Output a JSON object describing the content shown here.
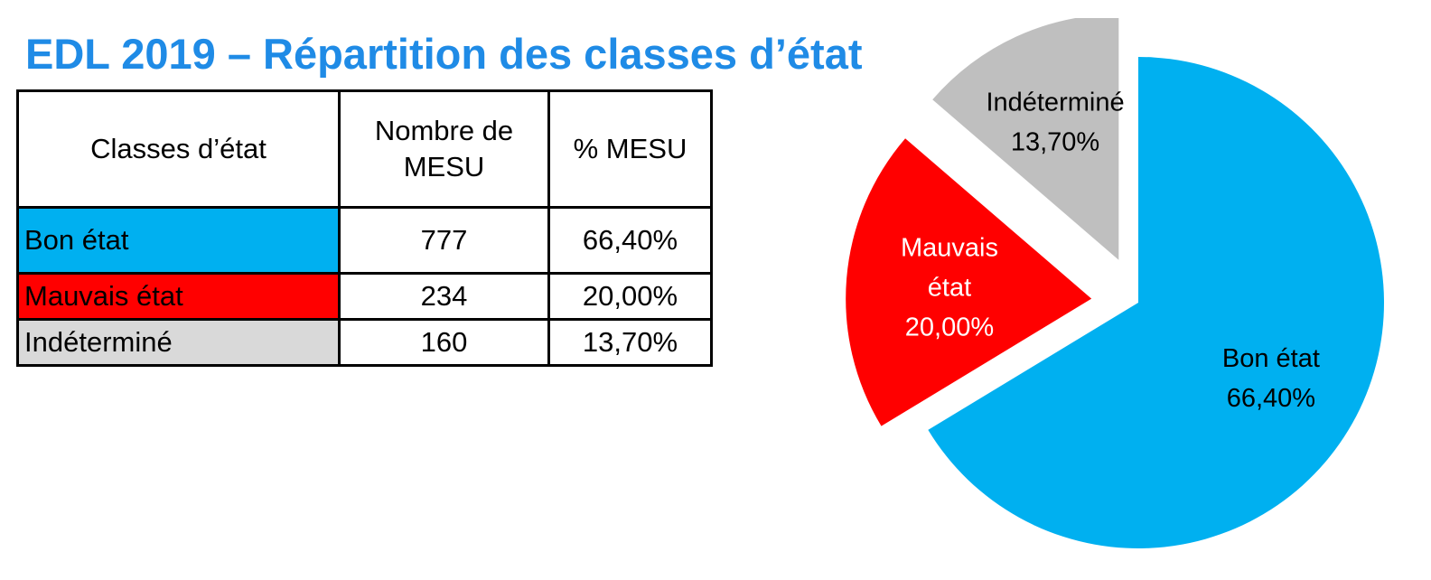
{
  "title": "EDL 2019 – Répartition des classes d’état",
  "table": {
    "headers": [
      "Classes d’état",
      "Nombre de MESU",
      "% MESU"
    ],
    "rows": [
      {
        "classe": "Bon état",
        "nombre": "777",
        "pct": "66,40%",
        "color": "#00b0f0"
      },
      {
        "classe": "Mauvais état",
        "nombre": "234",
        "pct": "20,00%",
        "color": "#ff0000"
      },
      {
        "classe": "Indéterminé",
        "nombre": "160",
        "pct": "13,70%",
        "color": "#d9d9d9"
      }
    ]
  },
  "chart_data": {
    "type": "pie",
    "title": "",
    "exploded": true,
    "slices": [
      {
        "label": "Bon état",
        "value": 66.4,
        "value_label": "66,40%",
        "color": "#00b0f0",
        "label_color": "#000000"
      },
      {
        "label": "Mauvais état",
        "value": 20.0,
        "value_label": "20,00%",
        "color": "#ff0000",
        "label_color": "#ffffff",
        "label_lines": [
          "Mauvais",
          "état"
        ]
      },
      {
        "label": "Indéterminé",
        "value": 13.7,
        "value_label": "13,70%",
        "color": "#bfbfbf",
        "label_color": "#000000"
      }
    ]
  }
}
